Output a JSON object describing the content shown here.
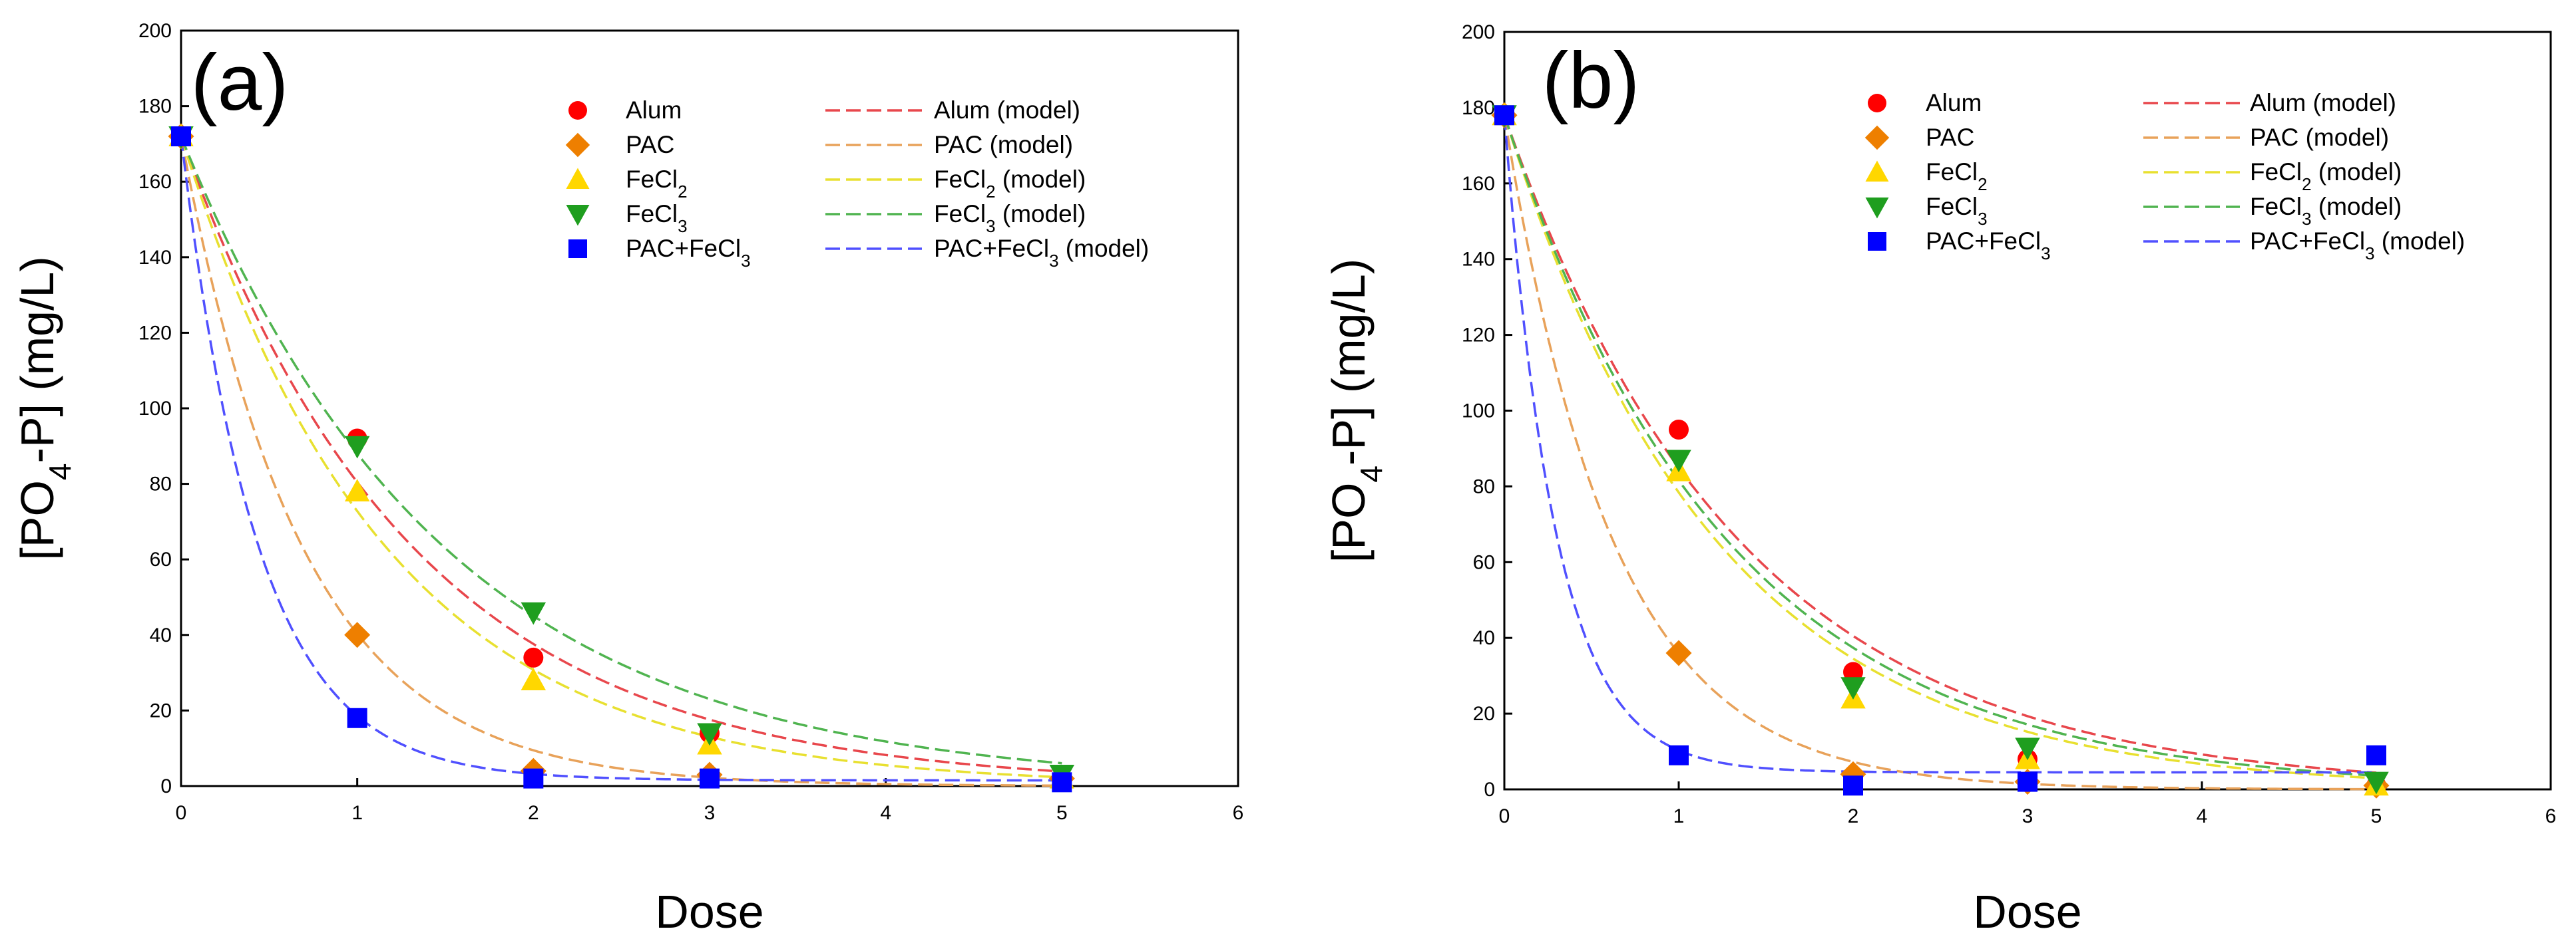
{
  "colors": {
    "alum": "#ff0000",
    "pac": "#ee7f00",
    "fecl2": "#ffd700",
    "fecl3": "#1f9e1f",
    "pac_fecl3": "#0000ff",
    "alum_model": "#e8474c",
    "pac_model": "#e8a25a",
    "fecl2_model": "#e8e030",
    "fecl3_model": "#50b450",
    "pac_fecl3_model": "#5050ff",
    "axis": "#000000"
  },
  "chart_data": [
    {
      "type": "scatter",
      "panel_label": "(a)",
      "xlabel": "Dose",
      "ylabel_parts": [
        "[PO",
        "4",
        "-P] (mg/L)"
      ],
      "xlim": [
        0,
        6
      ],
      "ylim": [
        0,
        200
      ],
      "xticks": [
        "0",
        "1",
        "2",
        "3",
        "4",
        "5",
        "6"
      ],
      "yticks": [
        "0",
        "20",
        "40",
        "60",
        "80",
        "100",
        "120",
        "140",
        "160",
        "180",
        "200"
      ],
      "legend_position": "top-right",
      "series": [
        {
          "key": "alum",
          "marker": "circle",
          "legend_parts": [
            "Alum"
          ],
          "model_legend_parts": [
            "Alum (model)"
          ],
          "x": [
            0,
            1,
            2,
            3,
            5
          ],
          "y": [
            172,
            92,
            34,
            14,
            2
          ],
          "model_k": 0.76,
          "model_floor": 0
        },
        {
          "key": "pac",
          "marker": "diamond",
          "legend_parts": [
            "PAC"
          ],
          "model_legend_parts": [
            "PAC (model)"
          ],
          "x": [
            0,
            1,
            2,
            3,
            5
          ],
          "y": [
            172,
            40,
            4,
            3,
            2
          ],
          "model_k": 1.45,
          "model_floor": 0
        },
        {
          "key": "fecl2",
          "marker": "triangle-up",
          "legend_parts": [
            "FeCl",
            "2",
            ""
          ],
          "model_legend_parts": [
            "FeCl",
            "2",
            " (model)"
          ],
          "x": [
            0,
            1,
            2,
            3,
            5
          ],
          "y": [
            172,
            78,
            28,
            11,
            2
          ],
          "model_k": 0.86,
          "model_floor": 0
        },
        {
          "key": "fecl3",
          "marker": "triangle-down",
          "legend_parts": [
            "FeCl",
            "3",
            ""
          ],
          "model_legend_parts": [
            "FeCl",
            "3",
            " (model)"
          ],
          "x": [
            0,
            1,
            2,
            3,
            5
          ],
          "y": [
            172,
            90,
            46,
            14,
            3
          ],
          "model_k": 0.67,
          "model_floor": 0
        },
        {
          "key": "pac_fecl3",
          "marker": "square",
          "legend_parts": [
            "PAC+FeCl",
            "3",
            ""
          ],
          "model_legend_parts": [
            "PAC+FeCl",
            "3",
            " (model)"
          ],
          "x": [
            0,
            1,
            2,
            3,
            5
          ],
          "y": [
            172,
            18,
            2,
            2,
            1
          ],
          "model_k": 2.3,
          "model_floor": 1.5
        }
      ]
    },
    {
      "type": "scatter",
      "panel_label": "(b)",
      "xlabel": "Dose",
      "ylabel_parts": [
        "[PO",
        "4",
        "-P] (mg/L)"
      ],
      "xlim": [
        0,
        6
      ],
      "ylim": [
        0,
        200
      ],
      "xticks": [
        "0",
        "1",
        "2",
        "3",
        "4",
        "5",
        "6"
      ],
      "yticks": [
        "0",
        "20",
        "40",
        "60",
        "80",
        "100",
        "120",
        "140",
        "160",
        "180",
        "200"
      ],
      "legend_position": "top-right",
      "series": [
        {
          "key": "alum",
          "marker": "circle",
          "legend_parts": [
            "Alum"
          ],
          "model_legend_parts": [
            "Alum (model)"
          ],
          "x": [
            0,
            1,
            2,
            3,
            5
          ],
          "y": [
            178,
            95,
            31,
            8,
            1
          ],
          "model_k": 0.74,
          "model_floor": 0
        },
        {
          "key": "pac",
          "marker": "diamond",
          "legend_parts": [
            "PAC"
          ],
          "model_legend_parts": [
            "PAC (model)"
          ],
          "x": [
            0,
            1,
            2,
            3,
            5
          ],
          "y": [
            178,
            36,
            4,
            2,
            1
          ],
          "model_k": 1.6,
          "model_floor": 0
        },
        {
          "key": "fecl2",
          "marker": "triangle-up",
          "legend_parts": [
            "FeCl",
            "2",
            ""
          ],
          "model_legend_parts": [
            "FeCl",
            "2",
            " (model)"
          ],
          "x": [
            0,
            1,
            2,
            3,
            5
          ],
          "y": [
            178,
            84,
            24,
            8,
            1
          ],
          "model_k": 0.82,
          "model_floor": 0
        },
        {
          "key": "fecl3",
          "marker": "triangle-down",
          "legend_parts": [
            "FeCl",
            "3",
            ""
          ],
          "model_legend_parts": [
            "FeCl",
            "3",
            " (model)"
          ],
          "x": [
            0,
            1,
            2,
            3,
            5
          ],
          "y": [
            178,
            87,
            27,
            11,
            2
          ],
          "model_k": 0.78,
          "model_floor": 0
        },
        {
          "key": "pac_fecl3",
          "marker": "square",
          "legend_parts": [
            "PAC+FeCl",
            "3",
            ""
          ],
          "model_legend_parts": [
            "PAC+FeCl",
            "3",
            " (model)"
          ],
          "x": [
            0,
            1,
            2,
            3,
            5
          ],
          "y": [
            178,
            9,
            1,
            2,
            9
          ],
          "model_k": 3.4,
          "model_floor": 4.5
        }
      ]
    }
  ]
}
